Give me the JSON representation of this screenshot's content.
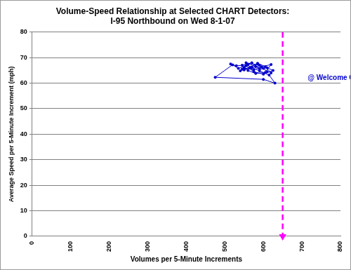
{
  "chart_data": {
    "type": "scatter",
    "title": [
      "Volume-Speed Relationship at Selected CHART Detectors:",
      "I-95 Northbound on Wed 8-1-07"
    ],
    "x_label": "Volumes per 5-Minute Increments",
    "y_label": "Average Speed per 5-Minute Increment (mph)",
    "xlim": [
      0,
      800
    ],
    "xticks": [
      0,
      100,
      200,
      300,
      400,
      500,
      600,
      700,
      800
    ],
    "ylim": [
      0,
      80
    ],
    "yticks": [
      0,
      10,
      20,
      30,
      40,
      50,
      60,
      70,
      80
    ],
    "grid": "y",
    "series": [
      {
        "color": "#0000cc",
        "marker": "circle",
        "line_style": "solid",
        "x": [
          515,
          530,
          560,
          545,
          570,
          590,
          555,
          580,
          600,
          610,
          585,
          565,
          540,
          550,
          575,
          595,
          620,
          605,
          580,
          560,
          545,
          570,
          590,
          610,
          625,
          600,
          575,
          555,
          535,
          520,
          475,
          600,
          630,
          615,
          590,
          570,
          550,
          585,
          605,
          620
        ],
        "values": [
          67.5,
          66.8,
          67.2,
          65.5,
          66.0,
          67.0,
          68.0,
          66.5,
          65.8,
          64.5,
          67.6,
          66.2,
          64.8,
          66.0,
          65.2,
          66.4,
          67.3,
          64.2,
          63.8,
          65.0,
          67.0,
          68.0,
          65.5,
          66.0,
          65.0,
          63.5,
          64.5,
          66.8,
          65.8,
          67.2,
          62.3,
          61.5,
          60.0,
          63.2,
          64.8,
          66.2,
          65.2,
          67.8,
          66.5,
          64.0
        ]
      },
      {
        "color": "#ff00ff",
        "marker": "triangle-down",
        "line_style": "dashed",
        "x": [
          650,
          650
        ],
        "values": [
          80,
          0
        ]
      }
    ],
    "annotations": [
      {
        "text": "@ Welcome Ctr",
        "x": 715,
        "y": 62,
        "color": "#0000cc"
      }
    ]
  }
}
